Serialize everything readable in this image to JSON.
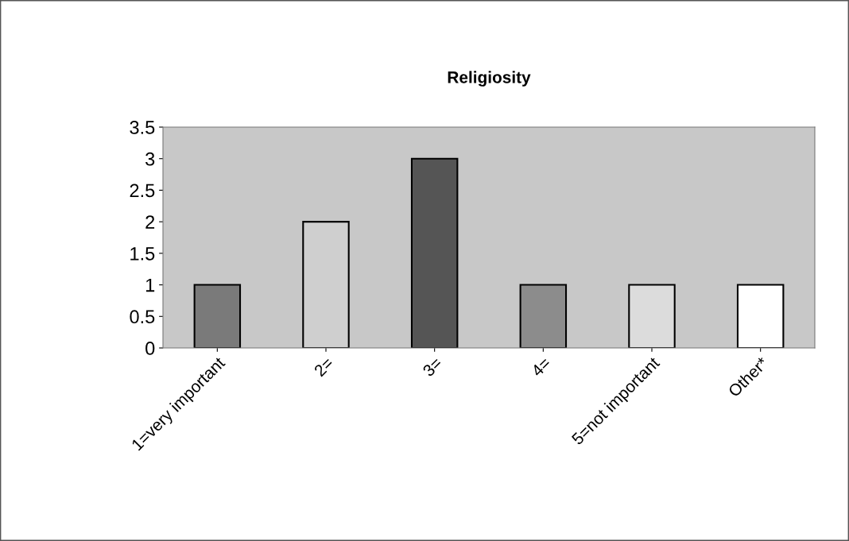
{
  "chart_data": {
    "type": "bar",
    "title": "Religiosity",
    "categories": [
      "1=very important",
      "2=",
      "3=",
      "4=",
      "5=not important",
      "Other*"
    ],
    "values": [
      1,
      2,
      3,
      1,
      1,
      1
    ],
    "colors": [
      "#7a7a7a",
      "#cfcfcf",
      "#555555",
      "#8c8c8c",
      "#dcdcdc",
      "#ffffff"
    ],
    "ylim": [
      0,
      3.5
    ],
    "yticks": [
      0,
      0.5,
      1,
      1.5,
      2,
      2.5,
      3,
      3.5
    ],
    "grid": false,
    "legend": false
  }
}
